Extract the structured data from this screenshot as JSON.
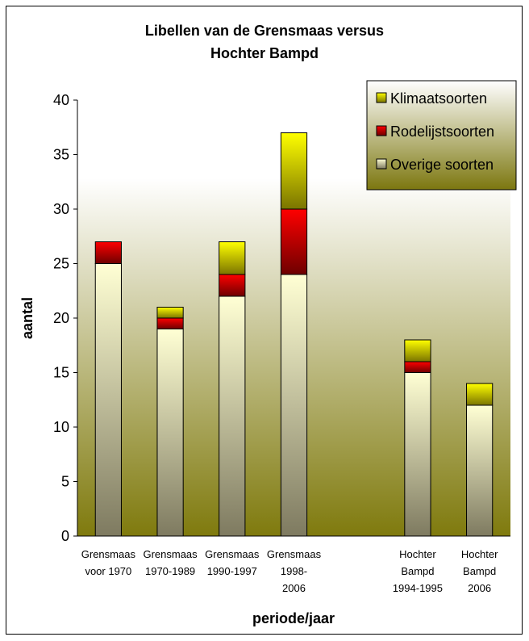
{
  "chart_data": {
    "type": "bar",
    "stacked": true,
    "title_lines": [
      "Libellen van de Grensmaas versus",
      "Hochter Bampd"
    ],
    "xlabel": "periode/jaar",
    "ylabel": "aantal",
    "ylim": [
      0,
      40
    ],
    "yticks": [
      "0",
      "5",
      "10",
      "15",
      "20",
      "25",
      "30",
      "35",
      "40"
    ],
    "categories": [
      [
        "Grensmaas",
        "voor 1970"
      ],
      [
        "Grensmaas",
        "1970-1989"
      ],
      [
        "Grensmaas",
        "1990-1997"
      ],
      [
        "Grensmaas",
        "1998-",
        "2006"
      ],
      [],
      [
        "Hochter",
        "Bampd",
        "1994-1995"
      ],
      [
        "Hochter",
        "Bampd",
        "2006"
      ]
    ],
    "series": [
      {
        "name": "Overige soorten",
        "color": "#ffffcc",
        "values": [
          25,
          19,
          22,
          24,
          null,
          15,
          12
        ]
      },
      {
        "name": "Rodelijstsoorten",
        "color": "#ee0000",
        "values": [
          2,
          1,
          2,
          6,
          null,
          1,
          0
        ]
      },
      {
        "name": "Klimaatsoorten",
        "color": "#eeee00",
        "values": [
          0,
          1,
          3,
          7,
          null,
          2,
          2
        ]
      }
    ],
    "legend": {
      "position": "top-right",
      "entries": [
        "Klimaatsoorten",
        "Rodelijstsoorten",
        "Overige soorten"
      ],
      "colors": [
        "#eeee00",
        "#ee0000",
        "#ffffcc"
      ]
    },
    "plot_background": "gradient white to olive",
    "grid": false
  }
}
